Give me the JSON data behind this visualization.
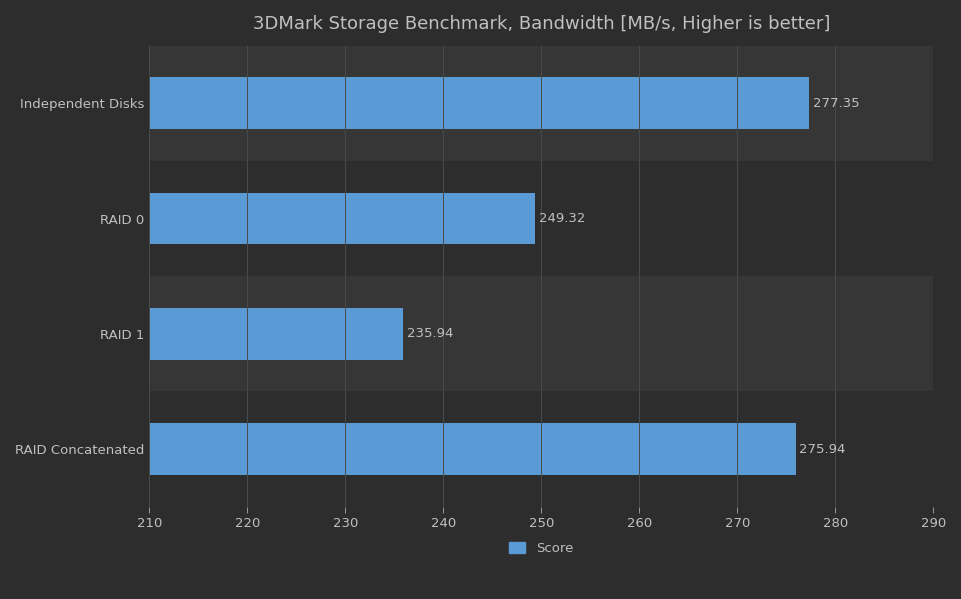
{
  "title": "3DMark Storage Benchmark, Bandwidth [MB/s, Higher is better]",
  "categories": [
    "Independent Disks",
    "RAID 0",
    "RAID 1",
    "RAID Concatenated"
  ],
  "values": [
    277.35,
    249.32,
    235.94,
    275.94
  ],
  "value_labels": [
    "277.35",
    "249.32",
    "235.94",
    "275.94"
  ],
  "bar_color": "#5b9bd5",
  "xlim": [
    210,
    290
  ],
  "xticks": [
    210,
    220,
    230,
    240,
    250,
    260,
    270,
    280,
    290
  ],
  "background_color": "#2d2d2d",
  "axes_background": "#2d2d2d",
  "band_light": "#363636",
  "band_dark": "#2d2d2d",
  "text_color": "#c0c0c0",
  "grid_color": "#4a4a4a",
  "title_fontsize": 13,
  "tick_fontsize": 9.5,
  "label_fontsize": 9.5,
  "legend_label": "Score",
  "legend_color": "#5b9bd5",
  "bar_height": 0.45
}
